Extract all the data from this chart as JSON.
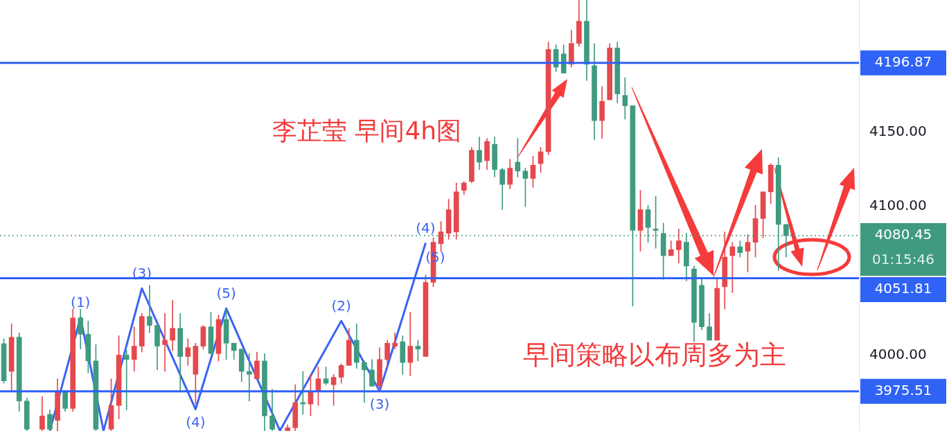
{
  "chart_data": {
    "type": "candlestick",
    "categories": [
      null,
      null,
      null,
      null,
      null,
      null,
      null,
      null,
      null,
      null,
      null,
      null,
      null,
      null,
      null,
      null,
      null,
      null,
      null,
      null,
      null,
      null,
      null,
      null,
      null,
      null,
      null,
      null,
      null,
      null,
      null,
      null,
      null,
      null,
      null,
      null,
      null,
      null,
      null,
      null,
      null,
      null,
      null,
      null,
      null,
      null,
      null,
      null,
      null,
      null,
      null,
      null,
      null,
      null,
      null,
      null,
      null,
      null,
      null,
      null,
      null,
      null,
      null,
      null,
      null,
      null,
      null,
      null,
      null,
      null,
      null,
      null,
      null,
      null,
      null,
      null,
      null,
      null,
      null,
      null,
      null,
      null,
      null,
      null,
      null,
      null,
      null,
      null,
      null,
      null,
      null,
      null,
      null,
      null,
      null,
      null,
      null,
      null,
      null,
      null,
      null,
      null,
      null,
      null,
      null,
      null,
      null,
      null,
      null,
      null,
      null,
      null
    ],
    "ohlc": [
      [
        4007.7,
        4011,
        3981,
        3982.6
      ],
      [
        3989,
        4021,
        3976,
        4012
      ],
      [
        4012,
        4015,
        3962,
        3969
      ],
      [
        3969,
        3971,
        3949,
        3950
      ],
      null,
      [
        3950,
        3972,
        3949,
        3959
      ],
      [
        3960,
        3963,
        3949,
        3950
      ],
      [
        3956,
        3984,
        3949,
        3975
      ],
      [
        3975,
        3976,
        3962,
        3964
      ],
      [
        3964,
        4031,
        3962,
        4025
      ],
      [
        4025,
        4031,
        4004,
        4014
      ],
      [
        4014,
        4023,
        3988,
        3996
      ],
      [
        3996,
        4007,
        3949,
        3950
      ],
      null,
      [
        3950,
        3984,
        3949,
        3966
      ],
      [
        3966,
        4013,
        3957,
        4000
      ],
      [
        4000,
        4003,
        3963,
        3997
      ],
      [
        3997,
        4019,
        3989,
        4006
      ],
      [
        4006,
        4028,
        4002,
        4026
      ],
      [
        4026,
        4047,
        4015,
        4020
      ],
      [
        4020,
        4020,
        3990,
        4006
      ],
      [
        4007,
        4028,
        3989,
        4010
      ],
      [
        4010,
        4037,
        4003,
        4018
      ],
      [
        4018,
        4028,
        3975,
        3999
      ],
      [
        3999,
        4011,
        3993,
        4005
      ],
      [
        3987,
        4008,
        3967,
        4006
      ],
      [
        4006,
        4020,
        4004,
        4019
      ],
      [
        4019,
        4029,
        4001,
        4001
      ],
      [
        4001,
        4027,
        3996,
        4024
      ],
      [
        4024,
        4031,
        3997,
        4008
      ],
      [
        4008,
        4008,
        3997,
        4003
      ],
      [
        4004,
        4004,
        3982,
        3989
      ],
      [
        3989,
        4001,
        3969,
        3987
      ],
      [
        3984,
        4002,
        3984,
        3996
      ],
      [
        3996,
        4001,
        3949,
        3959
      ],
      [
        3959,
        3977,
        3949,
        3950
      ],
      null,
      [
        3949,
        3953,
        3949,
        3951
      ],
      [
        3951,
        3980,
        3949,
        3968
      ],
      [
        3968,
        3989,
        3960,
        3967
      ],
      [
        3967,
        3987,
        3959,
        3975
      ],
      [
        3976,
        3992,
        3966,
        3984
      ],
      [
        3984,
        3992,
        3980,
        3981
      ],
      [
        3980,
        3987,
        3966,
        3985
      ],
      [
        3985,
        3994,
        3981,
        3993
      ],
      [
        3993,
        4018,
        3993,
        4010
      ],
      [
        4010,
        4021,
        3991,
        3995
      ],
      [
        3995,
        3996,
        3968,
        3990
      ],
      [
        3990,
        3997,
        3979,
        3979
      ],
      [
        3979,
        4005,
        3976,
        3997
      ],
      [
        3997,
        4010,
        3992,
        4008
      ],
      [
        4006,
        4015,
        4004,
        4008
      ],
      [
        4009,
        4013,
        3987,
        3995
      ],
      [
        3995,
        4029,
        3986,
        4006
      ],
      [
        4006,
        4010,
        3996,
        4004
      ],
      [
        3999,
        4054,
        3999,
        4049
      ],
      [
        4049,
        4079,
        4046,
        4076
      ],
      [
        4075,
        4090,
        4070,
        4083
      ],
      [
        4082,
        4105,
        4078,
        4098
      ],
      [
        4083,
        4116,
        4078,
        4110
      ],
      [
        4111,
        4117,
        4108,
        4116
      ],
      [
        4117,
        4140,
        4116,
        4138
      ],
      [
        4138,
        4147,
        4125,
        4130
      ],
      [
        4131,
        4146,
        4125,
        4144
      ],
      [
        4142,
        4147,
        4120,
        4125
      ],
      [
        4125,
        4126,
        4098,
        4115
      ],
      [
        4115,
        4132,
        4112,
        4126
      ],
      [
        4130,
        4146,
        4120,
        4124
      ],
      [
        4124,
        4126,
        4100,
        4119
      ],
      [
        4119,
        4134,
        4113,
        4128
      ],
      [
        4129,
        4140,
        4123,
        4137
      ],
      [
        4137,
        4211,
        4135,
        4206
      ],
      [
        4206,
        4209,
        4191,
        4194
      ],
      [
        4203,
        4209,
        4190,
        4190
      ],
      [
        4196,
        4219,
        4194,
        4210
      ],
      [
        4210,
        4239,
        4208,
        4225
      ],
      [
        4225,
        4239,
        4185,
        4196
      ],
      [
        4195,
        4210,
        4145,
        4158
      ],
      [
        4158,
        4181,
        4146,
        4171
      ],
      [
        4172,
        4210,
        4172,
        4207
      ],
      [
        4207,
        4211,
        4170,
        4176
      ],
      [
        4175,
        4187,
        4159,
        4168
      ],
      [
        4168,
        4168,
        4033,
        4084
      ],
      [
        4084,
        4111,
        4070,
        4098
      ],
      [
        4098,
        4101,
        4076,
        4086
      ],
      [
        4085,
        4107,
        4072,
        4084
      ],
      [
        4082,
        4089,
        4051,
        4067
      ],
      [
        4067,
        4077,
        4067,
        4071
      ],
      [
        4071,
        4085,
        4062,
        4077
      ],
      [
        4076,
        4082,
        4050,
        4060
      ],
      [
        4058,
        4060,
        4009,
        4022
      ],
      [
        4047,
        4052,
        4017,
        4019
      ],
      [
        4019,
        4028,
        4010,
        4010
      ],
      [
        4010,
        4051,
        4010,
        4045
      ],
      [
        4046,
        4083,
        4031,
        4066
      ],
      [
        4067,
        4076,
        4042,
        4073
      ],
      [
        4073,
        4077,
        4066,
        4069
      ],
      [
        4070,
        4081,
        4056,
        4076
      ],
      [
        4076,
        4101,
        4066,
        4092
      ],
      [
        4092,
        4110,
        4079,
        4110
      ],
      [
        4110,
        4129,
        4102,
        4128
      ],
      [
        4128,
        4133,
        4057,
        4088
      ],
      [
        4088,
        4088,
        4066,
        4080.45
      ],
      null,
      null,
      null,
      null,
      null,
      null,
      null,
      null,
      null
    ],
    "colors": [
      "#3f9a80",
      "#e5484d",
      "#3f9a80",
      "#3f9a80",
      null,
      "#e5484d",
      "#3f9a80",
      "#e5484d",
      "#3f9a80",
      "#e5484d",
      "#3f9a80",
      "#3f9a80",
      "#3f9a80",
      null,
      "#e5484d",
      "#e5484d",
      "#3f9a80",
      "#e5484d",
      "#e5484d",
      "#3f9a80",
      "#3f9a80",
      "#e5484d",
      "#e5484d",
      "#3f9a80",
      "#e5484d",
      "#e5484d",
      "#e5484d",
      "#3f9a80",
      "#e5484d",
      "#3f9a80",
      "#3f9a80",
      "#3f9a80",
      "#3f9a80",
      "#e5484d",
      "#3f9a80",
      "#3f9a80",
      null,
      "#e5484d",
      "#e5484d",
      "#3f9a80",
      "#e5484d",
      "#e5484d",
      "#3f9a80",
      "#e5484d",
      "#e5484d",
      "#e5484d",
      "#3f9a80",
      "#3f9a80",
      "#3f9a80",
      "#e5484d",
      "#e5484d",
      "#e5484d",
      "#3f9a80",
      "#e5484d",
      "#3f9a80",
      "#e5484d",
      "#e5484d",
      "#e5484d",
      "#e5484d",
      "#e5484d",
      "#e5484d",
      "#e5484d",
      "#3f9a80",
      "#e5484d",
      "#3f9a80",
      "#3f9a80",
      "#e5484d",
      "#3f9a80",
      "#3f9a80",
      "#e5484d",
      "#e5484d",
      "#e5484d",
      "#3f9a80",
      "#3f9a80",
      "#e5484d",
      "#e5484d",
      "#3f9a80",
      "#3f9a80",
      "#e5484d",
      "#e5484d",
      "#3f9a80",
      "#3f9a80",
      "#3f9a80",
      "#e5484d",
      "#3f9a80",
      "#3f9a80",
      "#3f9a80",
      "#e5484d",
      "#e5484d",
      "#3f9a80",
      "#3f9a80",
      "#3f9a80",
      "#3f9a80",
      "#e5484d",
      "#e5484d",
      "#e5484d",
      "#3f9a80",
      "#e5484d",
      "#e5484d",
      "#e5484d",
      "#e5484d",
      "#3f9a80",
      "#3f9a80",
      null,
      null,
      null,
      null,
      null,
      null,
      null,
      null,
      null
    ],
    "series": [
      {
        "type": "line",
        "color": "#3a63f0",
        "marker": "none",
        "line_style": "solid",
        "values": [
          null,
          null,
          null,
          null,
          null,
          null,
          3949,
          null,
          null,
          null,
          4025.3,
          null,
          null,
          3949,
          null,
          null,
          null,
          null,
          4044.9,
          null,
          null,
          null,
          null,
          null,
          null,
          3963.5,
          null,
          null,
          null,
          4031.4,
          null,
          null,
          null,
          null,
          null,
          null,
          3949,
          null,
          null,
          null,
          null,
          null,
          null,
          null,
          4023,
          null,
          null,
          null,
          null,
          3975.6,
          null,
          null,
          null,
          null,
          null,
          4075.6,
          null,
          null,
          null,
          null,
          null,
          null,
          null,
          null,
          null,
          null,
          null,
          null,
          null,
          null,
          null,
          null,
          null,
          null,
          null,
          null,
          null,
          null,
          null,
          null,
          null,
          null,
          null,
          null,
          null,
          null,
          null,
          null,
          null,
          null,
          null,
          null,
          null,
          null,
          null,
          null,
          null,
          null,
          null,
          null,
          null,
          null,
          null,
          null,
          null,
          null,
          null,
          null,
          null,
          null,
          null,
          null
        ]
      }
    ],
    "ylim": [
      3948.8,
      4239.3
    ],
    "yticks": [
      {
        "value": 4000,
        "label": "4000.00"
      },
      {
        "value": 4100,
        "label": "4100.00"
      },
      {
        "value": 4150,
        "label": "4150.00"
      }
    ],
    "ref_lines": [
      {
        "axis": "y",
        "value": 4196.87,
        "label": "4196.87",
        "color": "#2f62f5",
        "line_style": "solid"
      },
      {
        "axis": "y",
        "value": 4051.81,
        "label": "4051.81",
        "color": "#2f62f5",
        "line_style": "solid"
      },
      {
        "axis": "y",
        "value": 3975.51,
        "label": "3975.51",
        "color": "#2f62f5",
        "line_style": "solid"
      },
      {
        "axis": "y",
        "value": 4080.45,
        "label": "4080.45",
        "color": "#3f9a80",
        "line_style": "dotted"
      }
    ],
    "annotations": [
      "李芷莹 早间4h图",
      "早间策略以布周多为主",
      "(1)",
      "(3)",
      "(4)",
      "(5)",
      "(2)",
      "(3)",
      "(4)",
      "(5)",
      "01:15:46"
    ],
    "grid": false,
    "legend": false
  }
}
